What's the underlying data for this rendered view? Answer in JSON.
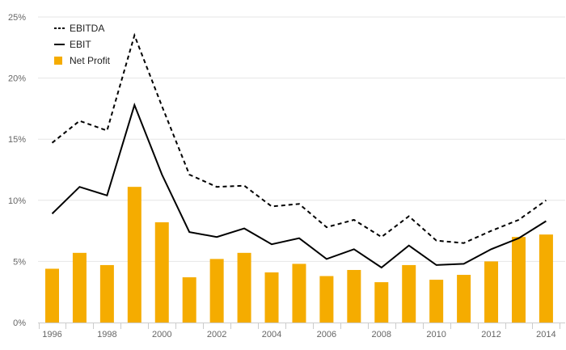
{
  "chart_data": {
    "type": "bar",
    "title": "",
    "xlabel": "",
    "ylabel": "",
    "ylim": [
      0,
      25
    ],
    "y_ticks": [
      "0%",
      "5%",
      "10%",
      "15%",
      "20%",
      "25%"
    ],
    "y_tick_values": [
      0,
      5,
      10,
      15,
      20,
      25
    ],
    "x_tick_labels": [
      "1996",
      "1998",
      "2000",
      "2002",
      "2004",
      "2006",
      "2008",
      "2010",
      "2012",
      "2014"
    ],
    "categories": [
      "1996",
      "1997",
      "1998",
      "1999",
      "2000",
      "2001",
      "2002",
      "2003",
      "2004",
      "2005",
      "2006",
      "2007",
      "2008",
      "2009",
      "2010",
      "2011",
      "2012",
      "2013",
      "2014"
    ],
    "grid": true,
    "legend_position": "top-left",
    "series": [
      {
        "name": "EBITDA",
        "type": "line",
        "style": "dashed",
        "color": "#000000",
        "values": [
          14.7,
          16.5,
          15.7,
          23.5,
          17.7,
          12.1,
          11.1,
          11.2,
          9.5,
          9.7,
          7.8,
          8.4,
          7.0,
          8.7,
          6.7,
          6.5,
          7.5,
          8.4,
          10.0
        ]
      },
      {
        "name": "EBIT",
        "type": "line",
        "style": "solid",
        "color": "#000000",
        "values": [
          8.9,
          11.1,
          10.4,
          17.8,
          12.1,
          7.4,
          7.0,
          7.7,
          6.4,
          6.9,
          5.2,
          6.0,
          4.5,
          6.3,
          4.7,
          4.8,
          6.0,
          6.9,
          8.3
        ]
      },
      {
        "name": "Net Profit",
        "type": "bar",
        "color": "#f5ac00",
        "values": [
          4.4,
          5.7,
          4.7,
          11.1,
          8.2,
          3.7,
          5.2,
          5.7,
          4.1,
          4.8,
          3.8,
          4.3,
          3.3,
          4.7,
          3.5,
          3.9,
          5.0,
          7.0,
          7.2
        ]
      }
    ]
  }
}
